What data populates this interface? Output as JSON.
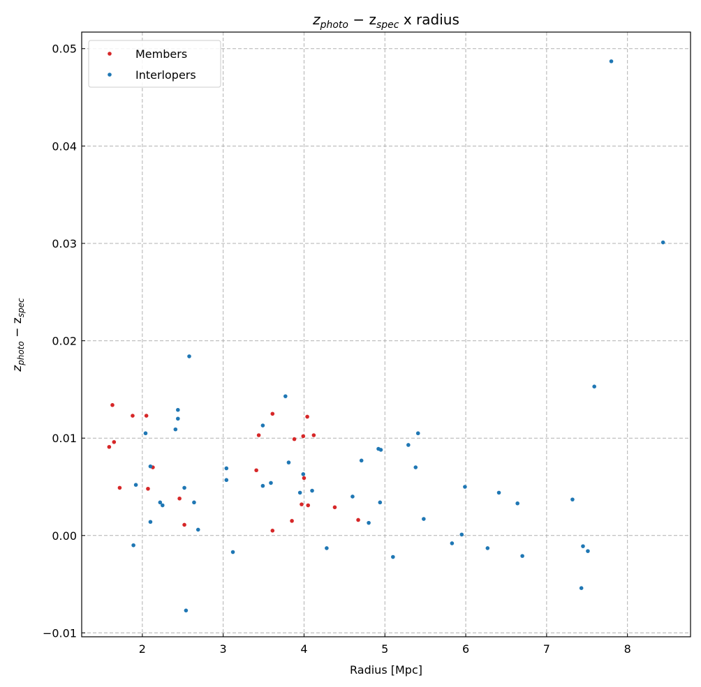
{
  "chart_data": {
    "type": "scatter",
    "title_main": "z",
    "title_sub1": "photo",
    "title_minus": " − z",
    "title_sub2": "spec",
    "title_rest": " x radius",
    "xlabel": "Radius [Mpc]",
    "ylabel_main": "z",
    "ylabel_sub1": "photo",
    "ylabel_minus": " − z",
    "ylabel_sub2": "spec",
    "xlim": [
      1.25,
      8.78
    ],
    "ylim": [
      -0.0104,
      0.0517
    ],
    "xticks": [
      2,
      3,
      4,
      5,
      6,
      7,
      8
    ],
    "xtick_labels": [
      "2",
      "3",
      "4",
      "5",
      "6",
      "7",
      "8"
    ],
    "yticks": [
      -0.01,
      0.0,
      0.01,
      0.02,
      0.03,
      0.04,
      0.05
    ],
    "ytick_labels": [
      "−0.01",
      "0.00",
      "0.01",
      "0.02",
      "0.03",
      "0.04",
      "0.05"
    ],
    "grid": true,
    "legend_placement": "top-left",
    "series": [
      {
        "name": "Members",
        "color": "#d62728",
        "points": [
          [
            1.63,
            0.0134
          ],
          [
            1.65,
            0.0096
          ],
          [
            1.59,
            0.0091
          ],
          [
            1.72,
            0.0049
          ],
          [
            1.88,
            0.0123
          ],
          [
            2.05,
            0.0123
          ],
          [
            2.07,
            0.0048
          ],
          [
            2.13,
            0.007
          ],
          [
            2.46,
            0.0038
          ],
          [
            2.52,
            0.0011
          ],
          [
            3.41,
            0.0067
          ],
          [
            3.44,
            0.0103
          ],
          [
            3.61,
            0.0125
          ],
          [
            3.61,
            0.0005
          ],
          [
            3.85,
            0.0015
          ],
          [
            3.88,
            0.0099
          ],
          [
            3.97,
            0.0032
          ],
          [
            3.99,
            0.0102
          ],
          [
            4.0,
            0.0059
          ],
          [
            4.04,
            0.0122
          ],
          [
            4.05,
            0.0031
          ],
          [
            4.12,
            0.0103
          ],
          [
            4.38,
            0.0029
          ],
          [
            4.67,
            0.0016
          ]
        ]
      },
      {
        "name": "Interlopers",
        "color": "#1f77b4",
        "points": [
          [
            1.89,
            -0.001
          ],
          [
            1.92,
            0.0052
          ],
          [
            2.04,
            0.0105
          ],
          [
            2.1,
            0.0071
          ],
          [
            2.1,
            0.0014
          ],
          [
            2.22,
            0.0034
          ],
          [
            2.25,
            0.0031
          ],
          [
            2.41,
            0.0109
          ],
          [
            2.44,
            0.0129
          ],
          [
            2.44,
            0.012
          ],
          [
            2.52,
            0.0049
          ],
          [
            2.54,
            -0.0077
          ],
          [
            2.58,
            0.0184
          ],
          [
            2.64,
            0.0034
          ],
          [
            2.69,
            0.0006
          ],
          [
            3.04,
            0.0069
          ],
          [
            3.04,
            0.0057
          ],
          [
            3.12,
            -0.0017
          ],
          [
            3.49,
            0.0113
          ],
          [
            3.49,
            0.0051
          ],
          [
            3.59,
            0.0054
          ],
          [
            3.77,
            0.0143
          ],
          [
            3.81,
            0.0075
          ],
          [
            3.95,
            0.0044
          ],
          [
            3.99,
            0.0063
          ],
          [
            4.1,
            0.0046
          ],
          [
            4.28,
            -0.0013
          ],
          [
            4.6,
            0.004
          ],
          [
            4.71,
            0.0077
          ],
          [
            4.8,
            0.0013
          ],
          [
            4.92,
            0.0089
          ],
          [
            4.95,
            0.0088
          ],
          [
            4.94,
            0.0034
          ],
          [
            5.1,
            -0.0022
          ],
          [
            5.29,
            0.0093
          ],
          [
            5.38,
            0.007
          ],
          [
            5.41,
            0.0105
          ],
          [
            5.48,
            0.0017
          ],
          [
            5.83,
            -0.0008
          ],
          [
            5.95,
            0.0001
          ],
          [
            5.99,
            0.005
          ],
          [
            6.27,
            -0.0013
          ],
          [
            6.41,
            0.0044
          ],
          [
            6.64,
            0.0033
          ],
          [
            6.7,
            -0.0021
          ],
          [
            7.32,
            0.0037
          ],
          [
            7.43,
            -0.0054
          ],
          [
            7.45,
            -0.0011
          ],
          [
            7.51,
            -0.0016
          ],
          [
            7.59,
            0.0153
          ],
          [
            7.8,
            0.0487
          ],
          [
            8.44,
            0.0301
          ]
        ]
      }
    ]
  }
}
